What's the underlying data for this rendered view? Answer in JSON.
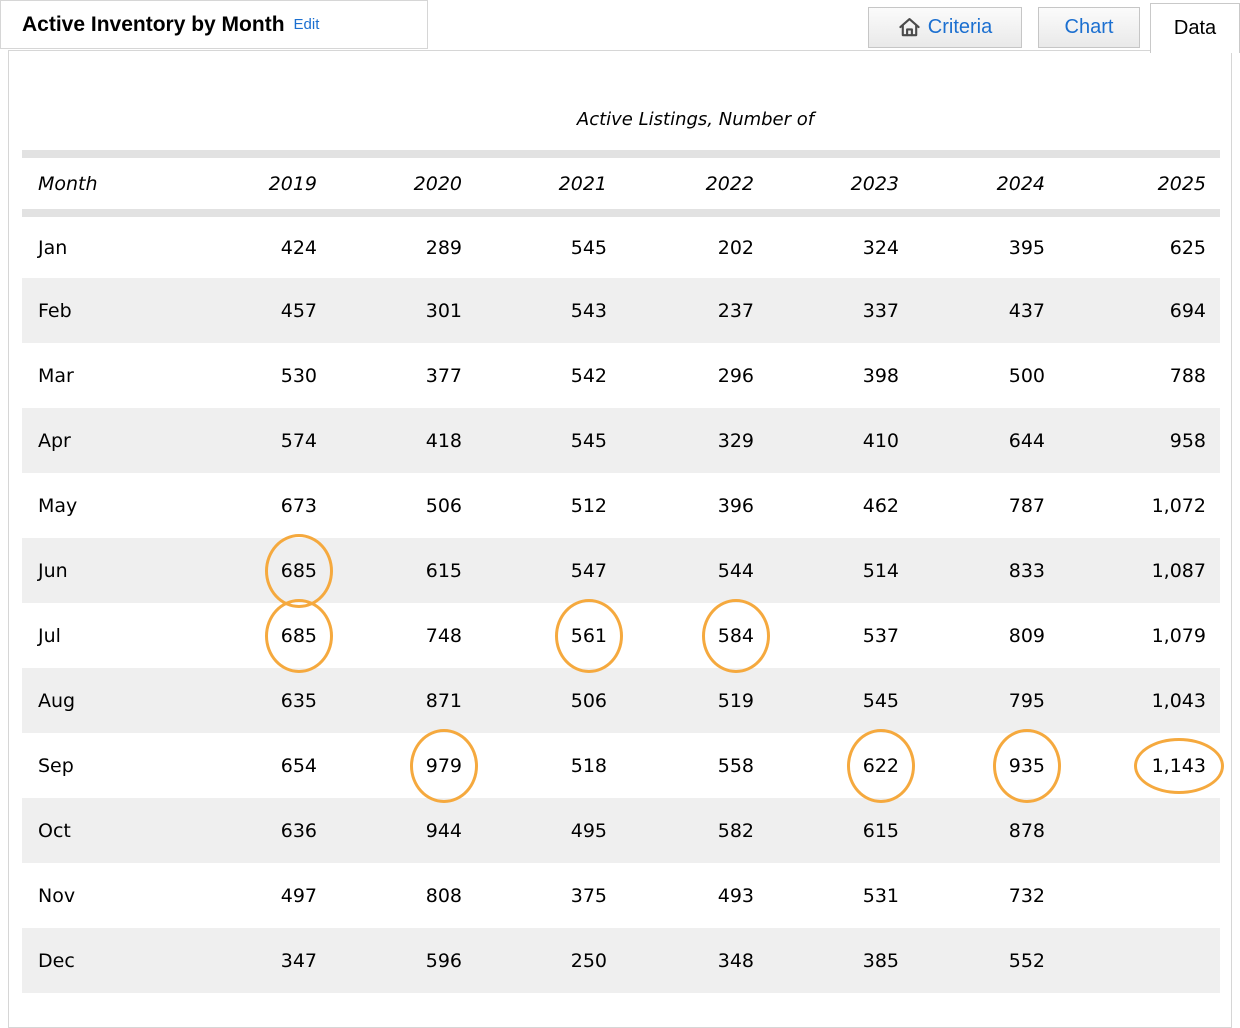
{
  "header": {
    "title": "Active Inventory by Month",
    "edit_label": "Edit",
    "tabs": [
      {
        "label": "Criteria",
        "icon": "home-icon",
        "active": false
      },
      {
        "label": "Chart",
        "active": false
      },
      {
        "label": "Data",
        "active": true
      }
    ]
  },
  "table": {
    "caption": "Active Listings, Number of",
    "columns": [
      "Month",
      "2019",
      "2020",
      "2021",
      "2022",
      "2023",
      "2024",
      "2025"
    ],
    "rows": [
      {
        "month": "Jan",
        "values": [
          "424",
          "289",
          "545",
          "202",
          "324",
          "395",
          "625"
        ]
      },
      {
        "month": "Feb",
        "values": [
          "457",
          "301",
          "543",
          "237",
          "337",
          "437",
          "694"
        ]
      },
      {
        "month": "Mar",
        "values": [
          "530",
          "377",
          "542",
          "296",
          "398",
          "500",
          "788"
        ]
      },
      {
        "month": "Apr",
        "values": [
          "574",
          "418",
          "545",
          "329",
          "410",
          "644",
          "958"
        ]
      },
      {
        "month": "May",
        "values": [
          "673",
          "506",
          "512",
          "396",
          "462",
          "787",
          "1,072"
        ]
      },
      {
        "month": "Jun",
        "values": [
          "685",
          "615",
          "547",
          "544",
          "514",
          "833",
          "1,087"
        ]
      },
      {
        "month": "Jul",
        "values": [
          "685",
          "748",
          "561",
          "584",
          "537",
          "809",
          "1,079"
        ]
      },
      {
        "month": "Aug",
        "values": [
          "635",
          "871",
          "506",
          "519",
          "545",
          "795",
          "1,043"
        ]
      },
      {
        "month": "Sep",
        "values": [
          "654",
          "979",
          "518",
          "558",
          "622",
          "935",
          "1,143"
        ]
      },
      {
        "month": "Oct",
        "values": [
          "636",
          "944",
          "495",
          "582",
          "615",
          "878",
          ""
        ]
      },
      {
        "month": "Nov",
        "values": [
          "497",
          "808",
          "375",
          "493",
          "531",
          "732",
          ""
        ]
      },
      {
        "month": "Dec",
        "values": [
          "347",
          "596",
          "250",
          "348",
          "385",
          "552",
          ""
        ]
      }
    ],
    "circled_cells": [
      {
        "month": "Jun",
        "year": "2019"
      },
      {
        "month": "Jul",
        "year": "2019"
      },
      {
        "month": "Jul",
        "year": "2021"
      },
      {
        "month": "Jul",
        "year": "2022"
      },
      {
        "month": "Sep",
        "year": "2020"
      },
      {
        "month": "Sep",
        "year": "2023"
      },
      {
        "month": "Sep",
        "year": "2024"
      },
      {
        "month": "Sep",
        "year": "2025"
      }
    ]
  },
  "colors": {
    "accent_blue": "#1b6fd0",
    "circle_orange": "#f5a93e",
    "row_alt": "#efefef",
    "bar_gray": "#e2e2e2",
    "border_gray": "#d6d6d6"
  }
}
